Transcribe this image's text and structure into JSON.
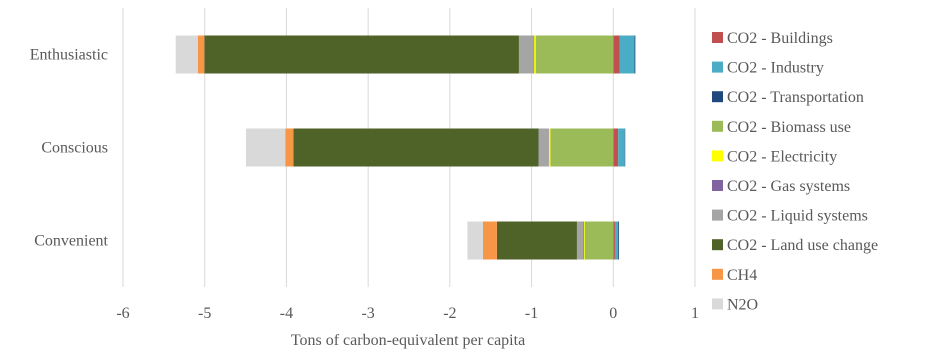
{
  "chart_data": {
    "type": "bar",
    "orientation": "horizontal",
    "stacked": true,
    "title": "",
    "xlabel": "Tons of carbon-equivalent per capita",
    "ylabel": "",
    "xlim": [
      -6,
      1
    ],
    "x_ticks": [
      -6,
      -5,
      -4,
      -3,
      -2,
      -1,
      0,
      1
    ],
    "grid": "vertical",
    "legend_position": "right",
    "categories": [
      "Enthusiastic",
      "Conscious",
      "Convenient"
    ],
    "series": [
      {
        "name": "CO2 - Buildings",
        "color": "#c0504d",
        "values": [
          0.08,
          0.06,
          0.02
        ]
      },
      {
        "name": "CO2 - Industry",
        "color": "#4bacc6",
        "values": [
          0.18,
          0.08,
          0.04
        ]
      },
      {
        "name": "CO2 - Transportation",
        "color": "#1f497d",
        "values": [
          0.01,
          0.005,
          0.01
        ]
      },
      {
        "name": "CO2 - Biomass use",
        "color": "#9bbb59",
        "values": [
          -0.95,
          -0.77,
          -0.35
        ]
      },
      {
        "name": "CO2 - Electricity",
        "color": "#ffff00",
        "values": [
          -0.02,
          -0.02,
          -0.01
        ]
      },
      {
        "name": "CO2 - Gas systems",
        "color": "#8064a2",
        "values": [
          -0.005,
          -0.005,
          -0.005
        ]
      },
      {
        "name": "CO2 - Liquid systems",
        "color": "#a5a5a5",
        "values": [
          -0.18,
          -0.12,
          -0.08
        ]
      },
      {
        "name": "CO2 - Land use change",
        "color": "#4f6228",
        "values": [
          -3.85,
          -3.0,
          -0.98
        ]
      },
      {
        "name": "CH4",
        "color": "#f79646",
        "values": [
          -0.08,
          -0.1,
          -0.17
        ]
      },
      {
        "name": "N2O",
        "color": "#d9d9d9",
        "values": [
          -0.27,
          -0.48,
          -0.19
        ]
      }
    ]
  }
}
